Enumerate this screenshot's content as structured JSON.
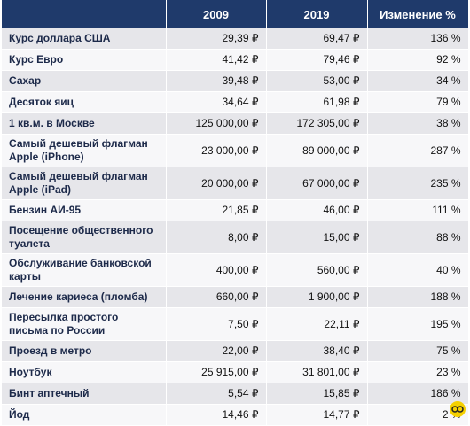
{
  "table": {
    "header": [
      "2009",
      "2019",
      "Изменение %"
    ],
    "rows": [
      [
        "Курс доллара США",
        "29,39 ₽",
        "69,47 ₽",
        "136 %"
      ],
      [
        "Курс Евро",
        "41,42 ₽",
        "79,46 ₽",
        "92 %"
      ],
      [
        "Сахар",
        "39,48 ₽",
        "53,00 ₽",
        "34 %"
      ],
      [
        "Десяток яиц",
        "34,64 ₽",
        "61,98 ₽",
        "79 %"
      ],
      [
        "1 кв.м. в Москве",
        "125 000,00 ₽",
        "172 305,00 ₽",
        "38 %"
      ],
      [
        "Самый дешевый флагман Apple (iPhone)",
        "23 000,00 ₽",
        "89 000,00 ₽",
        "287 %"
      ],
      [
        "Самый дешевый флагман Apple (iPad)",
        "20 000,00 ₽",
        "67 000,00 ₽",
        "235 %"
      ],
      [
        "Бензин АИ-95",
        "21,85 ₽",
        "46,00 ₽",
        "111 %"
      ],
      [
        "Посещение общественного туалета",
        "8,00 ₽",
        "15,00 ₽",
        "88 %"
      ],
      [
        "Обслуживание банковской карты",
        "400,00 ₽",
        "560,00 ₽",
        "40 %"
      ],
      [
        "Лечение кариеса (пломба)",
        "660,00 ₽",
        "1 900,00 ₽",
        "188 %"
      ],
      [
        "Пересылка простого письма по России",
        "7,50 ₽",
        "22,11 ₽",
        "195 %"
      ],
      [
        "Проезд в метро",
        "22,00 ₽",
        "38,40 ₽",
        "75 %"
      ],
      [
        "Ноутбук",
        "25 915,00 ₽",
        "31 801,00 ₽",
        "23 %"
      ],
      [
        "Бинт аптечный",
        "5,54 ₽",
        "15,85 ₽",
        "186 %"
      ],
      [
        "Йод",
        "14,46 ₽",
        "14,77 ₽",
        "2 %"
      ]
    ]
  }
}
